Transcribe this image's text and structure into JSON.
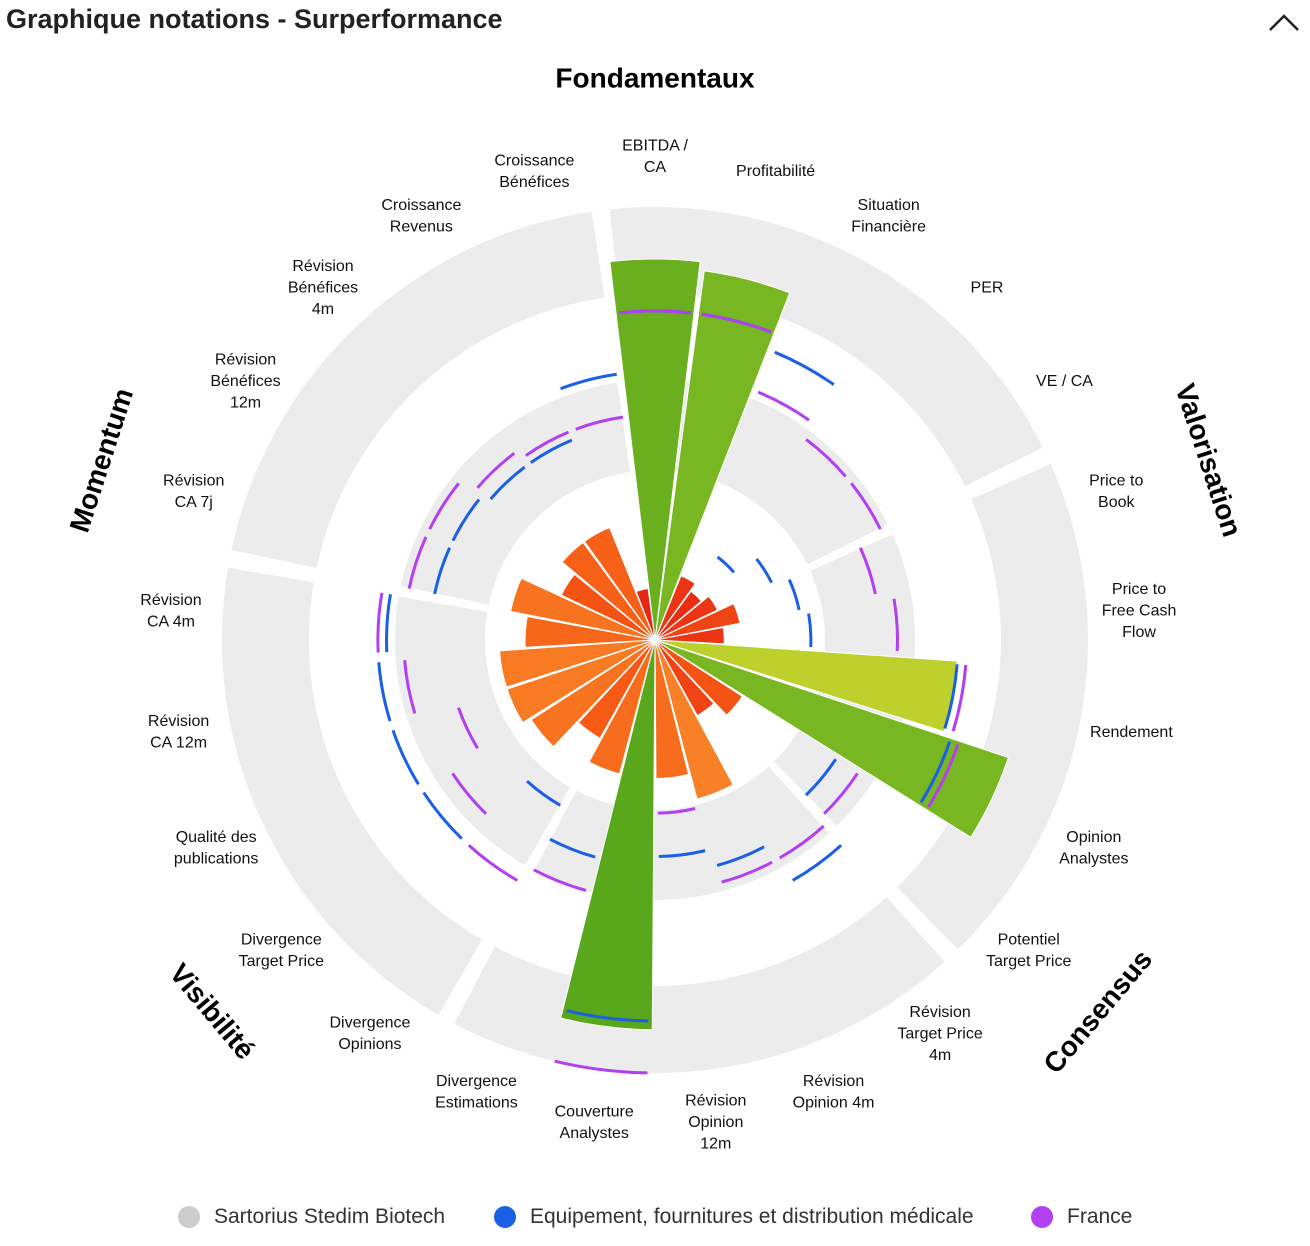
{
  "header": {
    "title": "Graphique notations - Surperformance",
    "collapse_icon": "chevron-up-icon"
  },
  "legend": [
    {
      "label": "Sartorius Stedim Biotech",
      "color": "#cccccc"
    },
    {
      "label": "Equipement, fournitures et distribution médicale",
      "color": "#1a5fe6"
    },
    {
      "label": "France",
      "color": "#b23ff0"
    }
  ],
  "chart_data": {
    "type": "polar-bar",
    "scale_max": 5,
    "colors": {
      "company": "#cccccc",
      "sector": "#1a5fe6",
      "country": "#b23ff0",
      "band": "#ececec"
    },
    "groups": [
      {
        "name": "Fondamentaux",
        "start": 0,
        "count": 5
      },
      {
        "name": "Valorisation",
        "start": 5,
        "count": 5
      },
      {
        "name": "Consensus",
        "start": 10,
        "count": 5
      },
      {
        "name": "Visibilité",
        "start": 15,
        "count": 5
      },
      {
        "name": "Momentum",
        "start": 20,
        "count": 5
      }
    ],
    "categories": [
      [
        "EBITDA /",
        "CA"
      ],
      [
        "Profitabilité"
      ],
      [
        "Situation",
        "Financière"
      ],
      [
        "PER"
      ],
      [
        "VE / CA"
      ],
      [
        "Price to",
        "Book"
      ],
      [
        "Price to",
        "Free Cash",
        "Flow"
      ],
      [
        "Rendement"
      ],
      [
        "Opinion",
        "Analystes"
      ],
      [
        "Potentiel",
        "Target Price"
      ],
      [
        "Révision",
        "Target Price",
        "4m"
      ],
      [
        "Révision",
        "Opinion 4m"
      ],
      [
        "Révision",
        "Opinion",
        "12m"
      ],
      [
        "Couverture",
        "Analystes"
      ],
      [
        "Divergence",
        "Estimations"
      ],
      [
        "Divergence",
        "Opinions"
      ],
      [
        "Divergence",
        "Target Price"
      ],
      [
        "Qualité des",
        "publications"
      ],
      [
        "Révision",
        "CA 12m"
      ],
      [
        "Révision",
        "CA 4m"
      ],
      [
        "Révision",
        "CA 7j"
      ],
      [
        "Révision",
        "Bénéfices",
        "12m"
      ],
      [
        "Révision",
        "Bénéfices",
        "4m"
      ],
      [
        "Croissance",
        "Revenus"
      ],
      [
        "Croissance",
        "Bénéfices"
      ]
    ],
    "series": [
      {
        "name": "Sartorius Stedim Biotech",
        "values": [
          4.4,
          4.3,
          0.8,
          0.7,
          0.8,
          1.0,
          0.8,
          3.5,
          4.3,
          1.2,
          1.0,
          1.9,
          1.6,
          4.5,
          1.6,
          1.3,
          1.7,
          1.8,
          1.8,
          1.5,
          1.7,
          1.2,
          1.4,
          1.4,
          0.6
        ]
      },
      {
        "name": "Equipement, fournitures et distribution médicale",
        "values": [
          3.8,
          3.8,
          3.6,
          1.2,
          1.5,
          1.7,
          1.8,
          3.5,
          3.6,
          2.5,
          3.2,
          2.7,
          2.5,
          4.4,
          2.6,
          2.2,
          3.2,
          3.2,
          3.2,
          3.1,
          2.6,
          2.6,
          2.5,
          2.5,
          3.1
        ]
      },
      {
        "name": "France",
        "values": [
          3.8,
          3.8,
          3.1,
          2.9,
          2.9,
          2.6,
          2.8,
          3.6,
          3.7,
          2.8,
          2.9,
          2.9,
          2.0,
          5.0,
          3.0,
          3.2,
          2.8,
          2.4,
          2.9,
          3.2,
          2.9,
          2.9,
          2.7,
          2.6,
          2.6
        ]
      }
    ]
  }
}
